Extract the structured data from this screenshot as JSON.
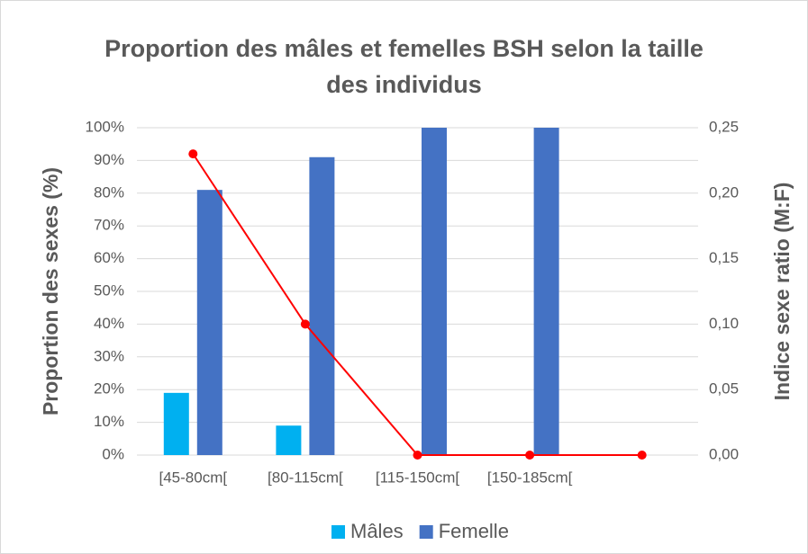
{
  "chart_data": {
    "type": "bar",
    "title": "Proportion des mâles et femelles BSH selon la taille des individus",
    "y_label": "Proportion des sexes (%)",
    "y2_label": "Indice sexe ratio (M:F)",
    "categories": [
      "[45-80cm[",
      "[80-115cm[",
      "[115-150cm[",
      "[150-185cm[",
      null
    ],
    "series": [
      {
        "name": "Mâles",
        "color": "#00b0f0",
        "values": [
          19,
          9,
          0,
          0,
          null
        ]
      },
      {
        "name": "Femelle",
        "color": "#4472c4",
        "values": [
          81,
          91,
          100,
          100,
          null
        ]
      },
      {
        "type": "line",
        "axis": "y2",
        "color": "#ff0000",
        "values": [
          0.23,
          0.1,
          0,
          0,
          0
        ]
      }
    ],
    "ylim": [
      0,
      100
    ],
    "yticks": [
      {
        "value": 0,
        "label": "0%"
      },
      {
        "value": 10,
        "label": "10%"
      },
      {
        "value": 20,
        "label": "20%"
      },
      {
        "value": 30,
        "label": "30%"
      },
      {
        "value": 40,
        "label": "40%"
      },
      {
        "value": 50,
        "label": "50%"
      },
      {
        "value": 60,
        "label": "60%"
      },
      {
        "value": 70,
        "label": "70%"
      },
      {
        "value": 80,
        "label": "80%"
      },
      {
        "value": 90,
        "label": "90%"
      },
      {
        "value": 100,
        "label": "100%"
      }
    ],
    "y2lim": [
      0,
      0.25
    ],
    "y2ticks": [
      {
        "value": 0,
        "label": "0,00"
      },
      {
        "value": 0.05,
        "label": "0,05"
      },
      {
        "value": 0.1,
        "label": "0,10"
      },
      {
        "value": 0.15,
        "label": "0,15"
      },
      {
        "value": 0.2,
        "label": "0,20"
      },
      {
        "value": 0.25,
        "label": "0,25"
      }
    ],
    "grid": true,
    "legend": "bottom"
  }
}
